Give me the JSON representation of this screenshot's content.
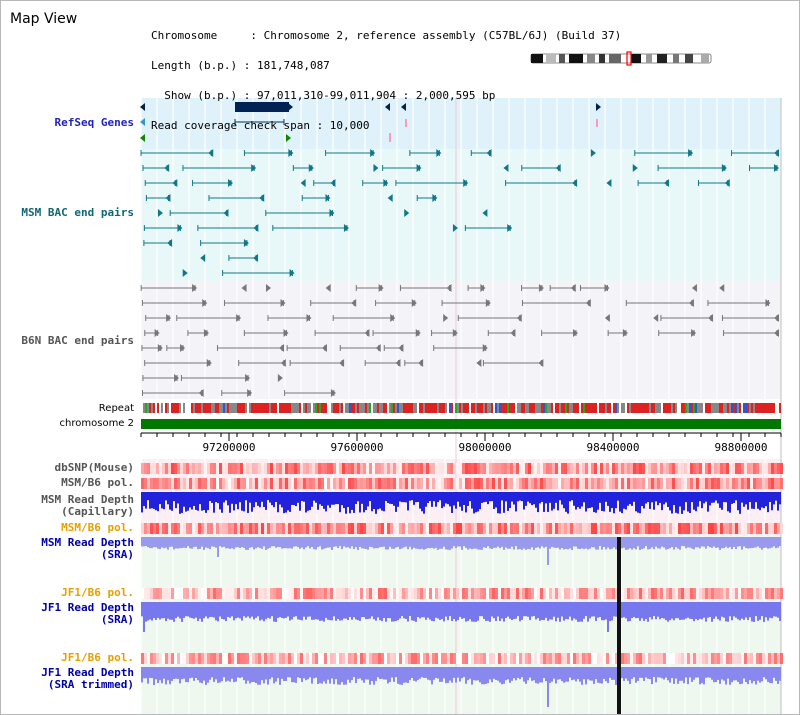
{
  "window": {
    "title": "Map View"
  },
  "info": {
    "chromosome_line": "Chromosome     : Chromosome 2, reference assembly (C57BL/6J) (Build 37)",
    "length_line": "Length (b.p.) : 181,748,087",
    "show_line": "  Show (b.p.) : 97,011,310-99,011,904 : 2,000,595 bp",
    "coverage_line": "Read coverage check span : 10,000"
  },
  "tracks": {
    "refseq": "RefSeq Genes",
    "msm_bac": "MSM BAC end pairs",
    "b6n_bac": "B6N BAC end pairs",
    "repeat": "Repeat",
    "chromosome": "chromosome 2",
    "dbsnp": "dbSNP(Mouse)",
    "msm_b6_pol_1": "MSM/B6 pol.",
    "msm_depth_cap_1": "MSM Read Depth",
    "msm_depth_cap_2": "(Capillary)",
    "msm_b6_pol_2": "MSM/B6 pol.",
    "msm_depth_sra_1": "MSM Read Depth",
    "msm_depth_sra_2": "(SRA)",
    "jf1_b6_pol_1": "JF1/B6 pol.",
    "jf1_depth_sra_1": "JF1 Read Depth",
    "jf1_depth_sra_2": "(SRA)",
    "jf1_b6_pol_2": "JF1/B6 pol.",
    "jf1_depth_trim_1": "JF1 Read Depth",
    "jf1_depth_trim_2": "(SRA trimmed)"
  },
  "axis": {
    "ticks": [
      "97200000",
      "97600000",
      "98000000",
      "98400000",
      "98800000"
    ]
  },
  "colors": {
    "refseq_label": "#2222bb",
    "msm_label": "#116677",
    "b6n_label": "#555555",
    "pol_label": "#e8a000",
    "depth_label": "#0000aa",
    "chromosome_bar": "#007700",
    "gene_fill": "#002255"
  }
}
